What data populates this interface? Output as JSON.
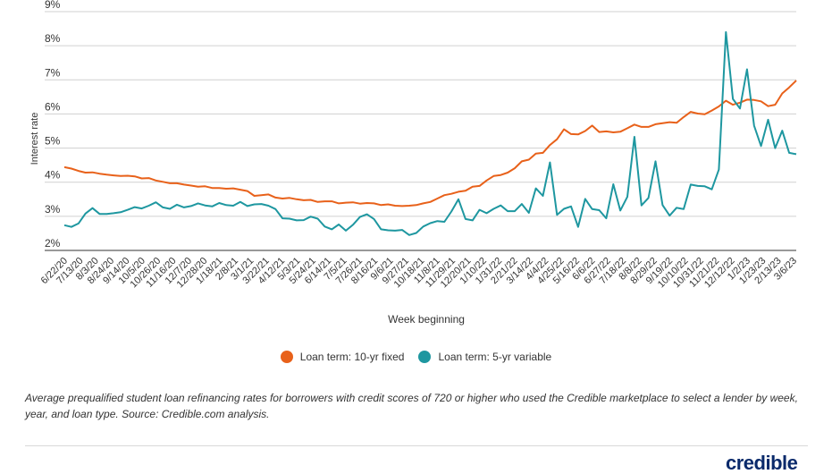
{
  "chart_data": {
    "type": "line",
    "xlabel": "Week beginning",
    "ylabel": "Interest rate",
    "ylim": [
      2,
      9
    ],
    "y_ticks": [
      "9%",
      "8%",
      "7%",
      "6%",
      "5%",
      "4%",
      "3%",
      "2%"
    ],
    "x_tick_labels": [
      "6/22/20",
      "7/13/20",
      "8/3/20",
      "8/24/20",
      "9/14/20",
      "10/5/20",
      "10/26/20",
      "11/16/20",
      "12/7/20",
      "12/28/20",
      "1/18/21",
      "2/8/21",
      "3/1/21",
      "3/22/21",
      "4/12/21",
      "5/3/21",
      "5/24/21",
      "6/14/21",
      "7/5/21",
      "7/26/21",
      "8/16/21",
      "9/6/21",
      "9/27/21",
      "10/18/21",
      "11/8/21",
      "11/29/21",
      "12/20/21",
      "1/10/22",
      "1/31/22",
      "2/21/22",
      "3/14/22",
      "4/4/22",
      "4/25/22",
      "5/16/22",
      "6/6/22",
      "6/27/22",
      "7/18/22",
      "8/8/22",
      "8/29/22",
      "9/19/22",
      "10/10/22",
      "10/31/22",
      "11/21/22",
      "12/12/22",
      "1/2/23",
      "1/23/23",
      "2/13/23",
      "3/6/23"
    ],
    "grid": true,
    "legend": "bottom",
    "series": [
      {
        "name": "Loan term: 10-yr fixed",
        "color": "#e8611a",
        "values": [
          4.44,
          4.4,
          4.33,
          4.28,
          4.29,
          4.25,
          4.22,
          4.2,
          4.18,
          4.19,
          4.17,
          4.11,
          4.12,
          4.05,
          4.01,
          3.97,
          3.97,
          3.93,
          3.9,
          3.87,
          3.88,
          3.83,
          3.83,
          3.81,
          3.82,
          3.78,
          3.74,
          3.6,
          3.62,
          3.64,
          3.55,
          3.52,
          3.54,
          3.5,
          3.47,
          3.48,
          3.42,
          3.44,
          3.44,
          3.38,
          3.4,
          3.41,
          3.37,
          3.39,
          3.38,
          3.33,
          3.35,
          3.31,
          3.3,
          3.31,
          3.33,
          3.38,
          3.42,
          3.52,
          3.62,
          3.66,
          3.72,
          3.75,
          3.87,
          3.89,
          4.05,
          4.18,
          4.21,
          4.28,
          4.41,
          4.61,
          4.66,
          4.84,
          4.86,
          5.09,
          5.26,
          5.55,
          5.41,
          5.4,
          5.5,
          5.66,
          5.47,
          5.49,
          5.46,
          5.48,
          5.58,
          5.69,
          5.62,
          5.62,
          5.7,
          5.73,
          5.76,
          5.74,
          5.91,
          6.06,
          6.01,
          5.99,
          6.1,
          6.22,
          6.39,
          6.27,
          6.33,
          6.42,
          6.41,
          6.37,
          6.23,
          6.27,
          6.6,
          6.78,
          6.98
        ]
      },
      {
        "name": "Loan term: 5-yr variable",
        "color": "#1e97a0",
        "values": [
          2.74,
          2.69,
          2.79,
          3.08,
          3.24,
          3.07,
          3.07,
          3.09,
          3.12,
          3.19,
          3.27,
          3.23,
          3.31,
          3.41,
          3.26,
          3.22,
          3.34,
          3.26,
          3.3,
          3.38,
          3.32,
          3.29,
          3.39,
          3.33,
          3.31,
          3.42,
          3.3,
          3.35,
          3.36,
          3.31,
          3.21,
          2.94,
          2.93,
          2.88,
          2.89,
          2.99,
          2.93,
          2.7,
          2.62,
          2.76,
          2.58,
          2.75,
          2.98,
          3.06,
          2.92,
          2.62,
          2.59,
          2.58,
          2.6,
          2.45,
          2.51,
          2.7,
          2.8,
          2.86,
          2.84,
          3.14,
          3.5,
          2.92,
          2.88,
          3.19,
          3.09,
          3.22,
          3.32,
          3.15,
          3.15,
          3.36,
          3.1,
          3.82,
          3.6,
          4.58,
          3.04,
          3.22,
          3.29,
          2.69,
          3.51,
          3.21,
          3.18,
          2.94,
          3.94,
          3.17,
          3.57,
          5.33,
          3.32,
          3.54,
          4.61,
          3.33,
          3.02,
          3.25,
          3.21,
          3.93,
          3.89,
          3.88,
          3.79,
          4.37,
          8.4,
          6.44,
          6.16,
          7.31,
          5.66,
          5.06,
          5.83,
          5.0,
          5.51,
          4.86,
          4.82
        ]
      }
    ]
  },
  "caption": "Average prequalified student loan refinancing rates for borrowers with credit scores of 720 or higher who used the Credible marketplace to select a lender by week, year, and loan type. Source: Credible.com analysis.",
  "logo_text": "credible"
}
